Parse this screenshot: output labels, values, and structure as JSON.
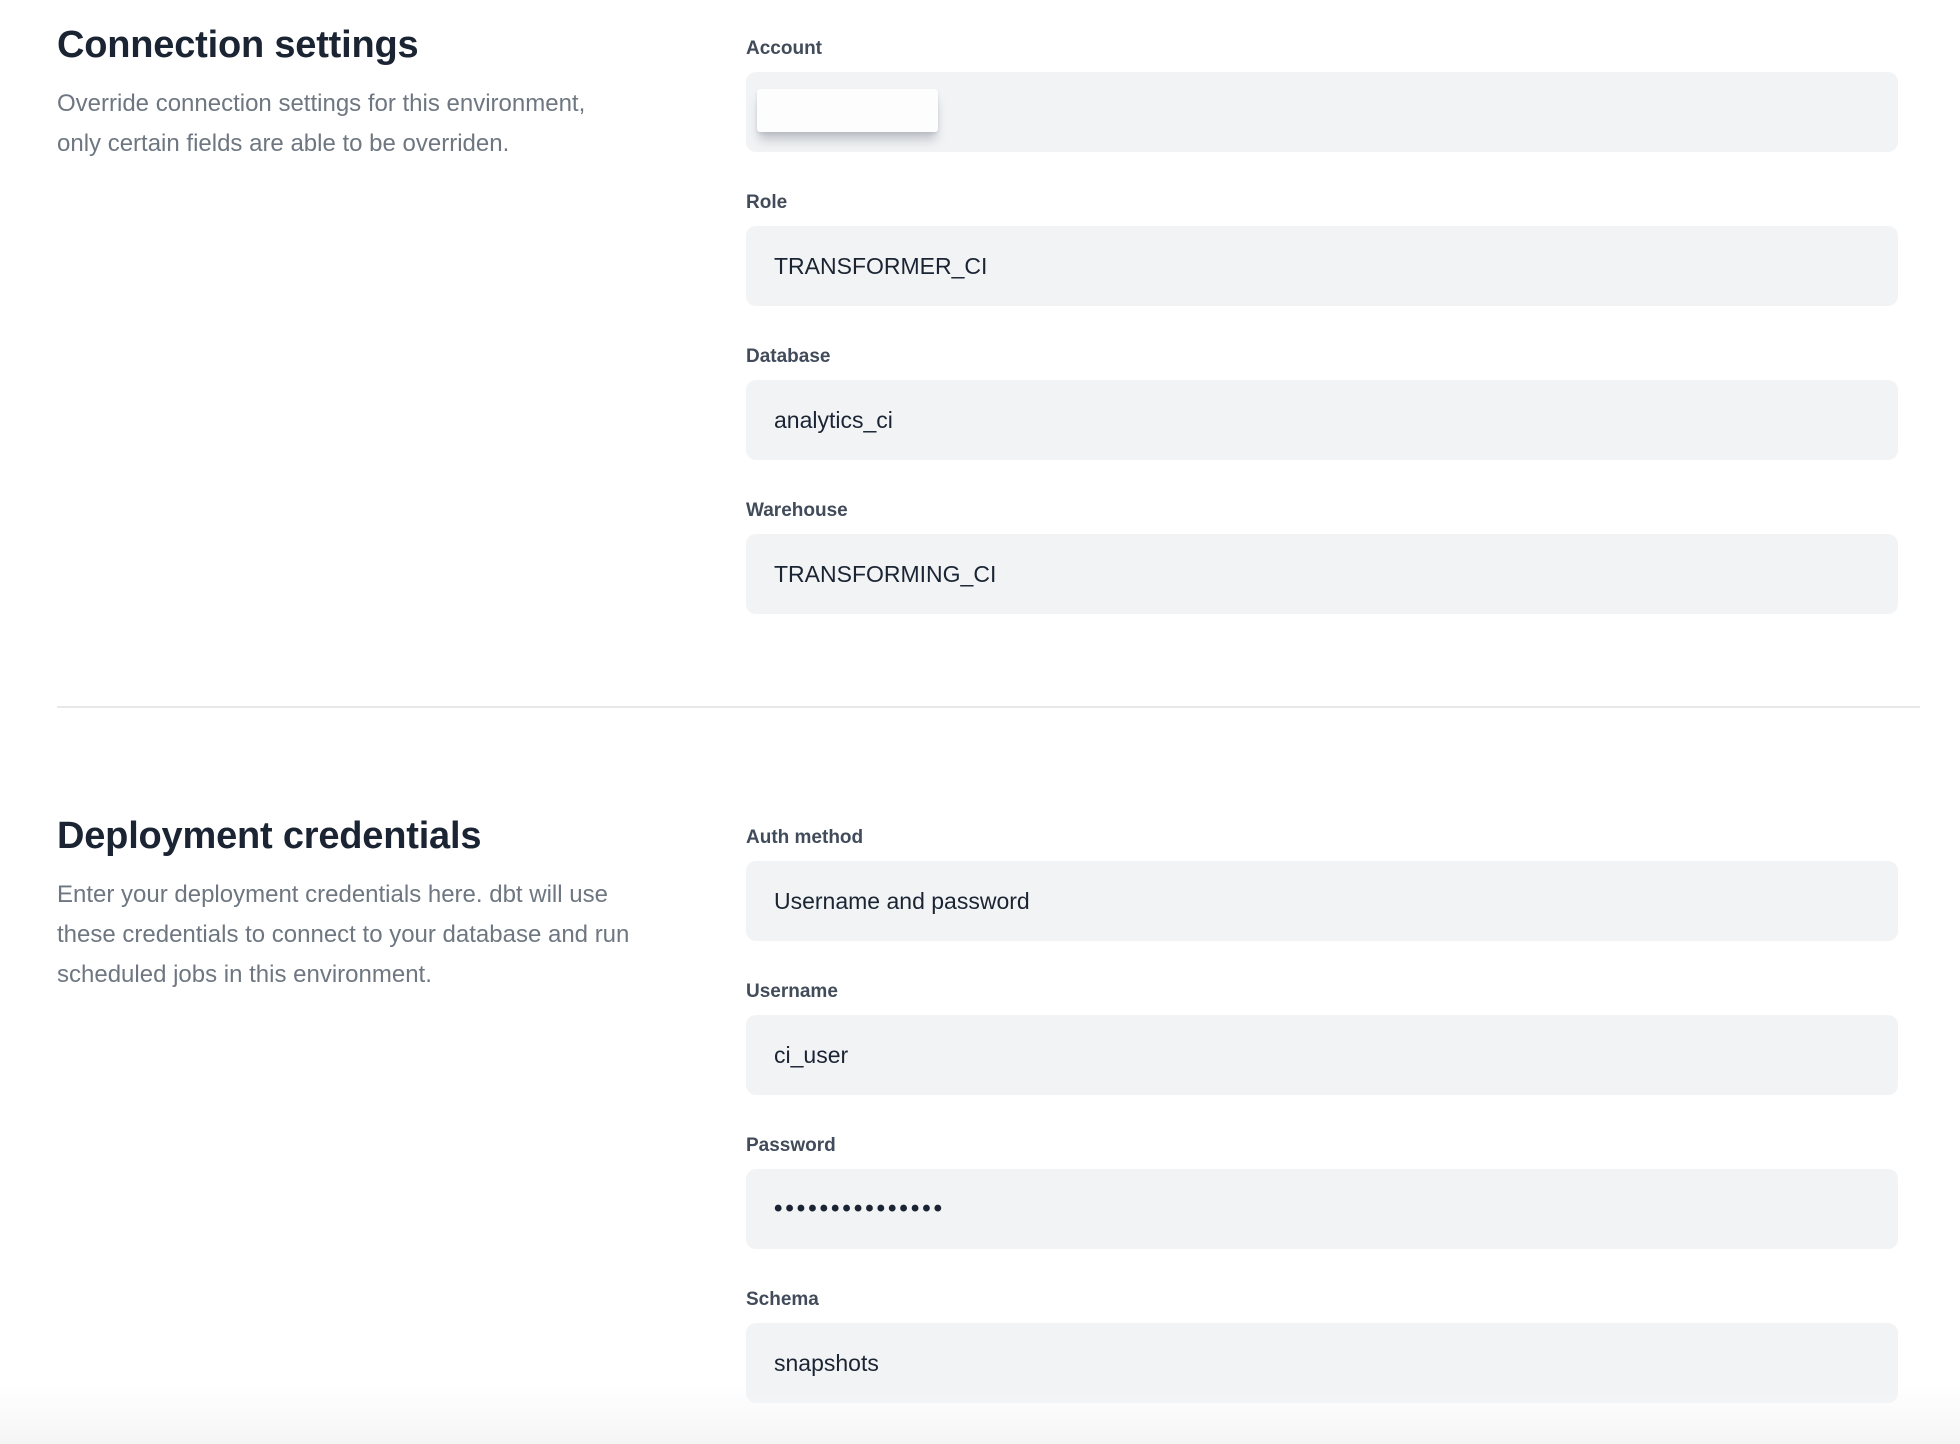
{
  "colors": {
    "field_background": "#f2f3f5",
    "heading_text": "#1b2433",
    "label_text": "#414b5a",
    "description_text": "#6e7781",
    "value_text": "#1a2433",
    "divider": "#e7e8ea",
    "bottom_fade": "#f5f5f6"
  },
  "connection_settings": {
    "title": "Connection settings",
    "description_lines": [
      "Override connection settings for this environment,",
      "only certain fields are able to be overriden."
    ],
    "fields": {
      "account": {
        "label": "Account",
        "value": ""
      },
      "role": {
        "label": "Role",
        "value": "TRANSFORMER_CI"
      },
      "database": {
        "label": "Database",
        "value": "analytics_ci"
      },
      "warehouse": {
        "label": "Warehouse",
        "value": "TRANSFORMING_CI"
      }
    }
  },
  "deployment_credentials": {
    "title": "Deployment credentials",
    "description_lines": [
      "Enter your deployment credentials here. dbt will use",
      "these credentials to connect to your database and run",
      "scheduled jobs in this environment."
    ],
    "fields": {
      "auth_method": {
        "label": "Auth method",
        "value": "Username and password"
      },
      "username": {
        "label": "Username",
        "value": "ci_user"
      },
      "password": {
        "label": "Password",
        "masked_value": "•••••••••••••••"
      },
      "schema": {
        "label": "Schema",
        "value": "snapshots"
      }
    }
  }
}
